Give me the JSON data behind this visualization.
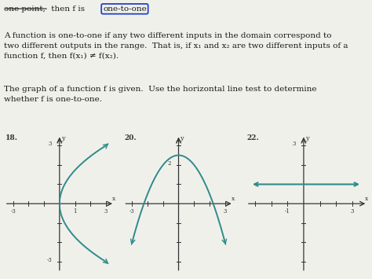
{
  "bg_color": "#f0f0eb",
  "text_color": "#1a1a1a",
  "curve_color": "#2e8b8b",
  "axis_color": "#333333",
  "top_line": "one point, then f is",
  "top_circled": "one-to-one",
  "para1_line1": "A function is one-to-one if any two different inputs in the domain correspond to",
  "para1_line2": "two different outputs in the range.  That is, if x₁ and x₂ are two different inputs of a",
  "para1_line3": "function f, then f(x₁) ≠ f(x₂).",
  "para2_line1": "The graph of a function f is given.  Use the horizontal line test to determine",
  "para2_line2": "whether f is one-to-one.",
  "figsize": [
    4.74,
    3.55
  ],
  "dpi": 100
}
